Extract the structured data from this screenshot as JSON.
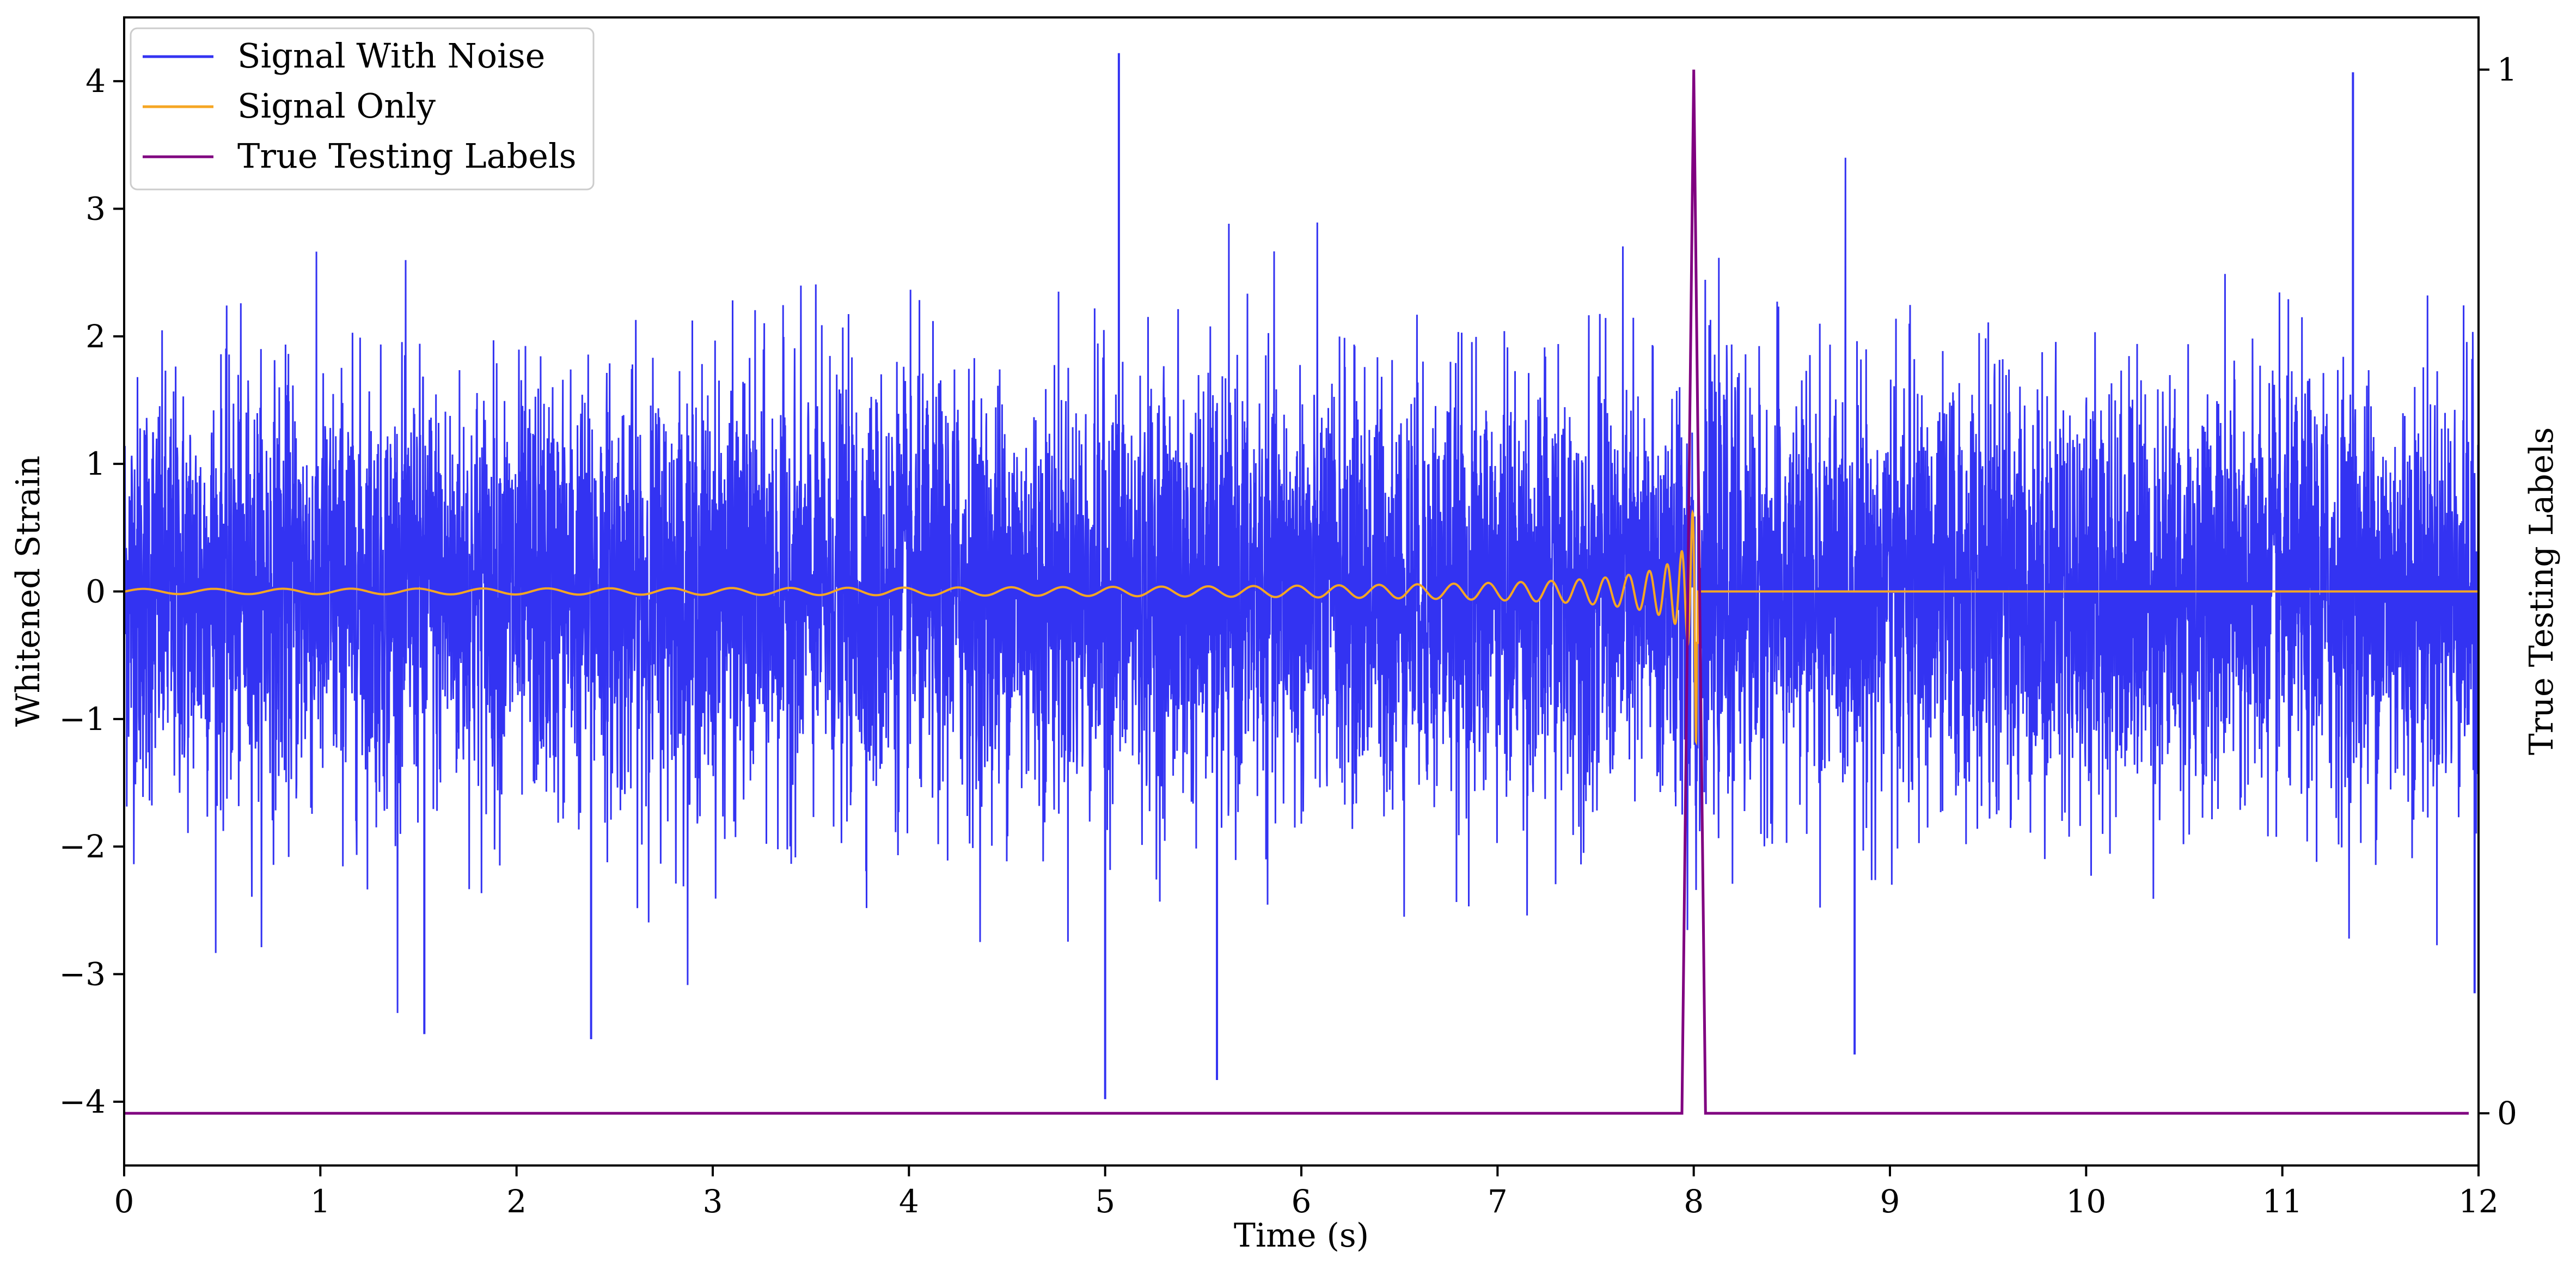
{
  "chart_data": {
    "type": "line",
    "xlabel": "Time (s)",
    "ylabel": "Whitened Strain",
    "y2label": "True Testing Labels",
    "xlim": [
      0,
      12
    ],
    "ylim": [
      -4.5,
      4.5
    ],
    "y2lim": [
      -0.05,
      1.05
    ],
    "x_ticks": [
      "0",
      "1",
      "2",
      "3",
      "4",
      "5",
      "6",
      "7",
      "8",
      "9",
      "10",
      "11",
      "12"
    ],
    "y_ticks": [
      "4",
      "3",
      "2",
      "1",
      "0",
      "−1",
      "−2",
      "−3",
      "−4"
    ],
    "y_tick_values": [
      4,
      3,
      2,
      1,
      0,
      -1,
      -2,
      -3,
      -4
    ],
    "y2_ticks": [
      "1",
      "0"
    ],
    "y2_tick_values": [
      1,
      0
    ],
    "legend_position": "top-left",
    "series": [
      {
        "name": "Signal With Noise",
        "color": "#3333f2",
        "axis": "left",
        "description_values": {
          "typical_range": [
            -2.3,
            2.3
          ],
          "peaks": [
            {
              "x": 5.07,
              "y": 4.22
            },
            {
              "x": 11.36,
              "y": 4.07
            },
            {
              "x": 5.0,
              "y": -3.98
            },
            {
              "x": 5.57,
              "y": -3.83
            },
            {
              "x": 8.82,
              "y": -3.63
            },
            {
              "x": 2.38,
              "y": -3.51
            },
            {
              "x": 1.53,
              "y": -3.47
            },
            {
              "x": 11.98,
              "y": -3.15
            }
          ]
        }
      },
      {
        "name": "Signal Only",
        "color": "#f5a623",
        "axis": "left",
        "chirp": {
          "start": 0,
          "merger": 8.0,
          "end": 12,
          "max_amplitude": 1.2
        }
      },
      {
        "name": "True Testing Labels",
        "color": "#800080",
        "axis": "right",
        "x": [
          0,
          7.94,
          8.0,
          8.06,
          11.95
        ],
        "values": [
          0,
          0,
          1,
          0,
          0
        ]
      }
    ]
  }
}
